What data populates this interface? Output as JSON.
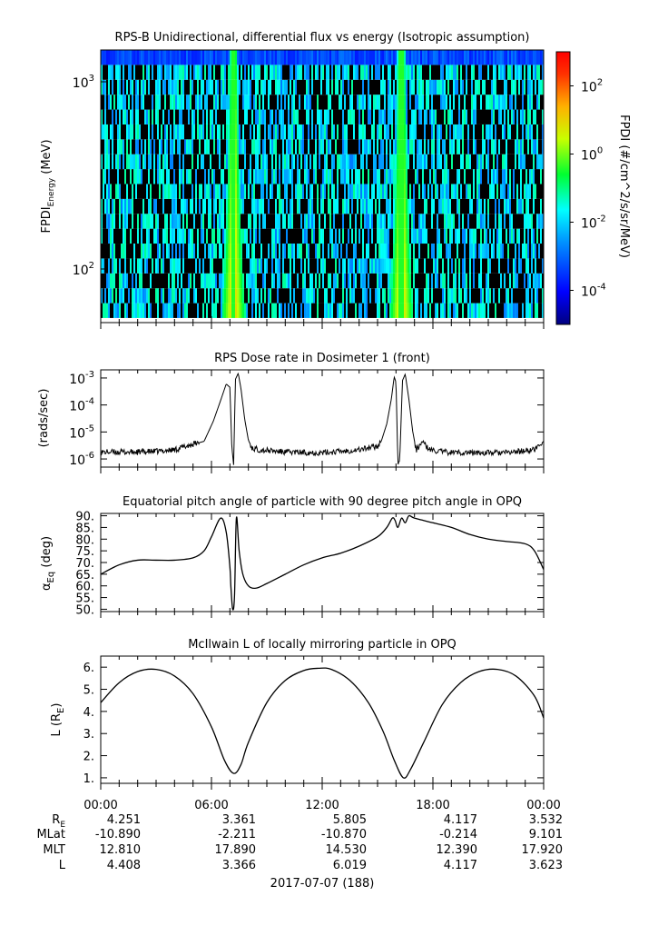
{
  "panels": {
    "spectrogram": {
      "title": "RPS-B  Unidirectional, differential flux vs energy (Isotropic assumption)",
      "ylabel_main": "FPDI",
      "ylabel_sub": "Energy",
      "ylabel_unit": " (MeV)",
      "ytick_labels": [
        {
          "base": "10",
          "exp": "3",
          "value": 1000
        },
        {
          "base": "10",
          "exp": "2",
          "value": 100
        }
      ],
      "colorbar_label": "FPDI (#/cm^2/s/sr/MeV)",
      "colorbar_tick_labels": [
        {
          "base": "10",
          "exp": "2",
          "value": 100
        },
        {
          "base": "10",
          "exp": "0",
          "value": 1
        },
        {
          "base": "10",
          "exp": "-2",
          "value": 0.01
        },
        {
          "base": "10",
          "exp": "-4",
          "value": 0.0001
        }
      ]
    },
    "dose": {
      "title": "RPS  Dose rate in Dosimeter 1 (front)",
      "ylabel": "(rads/sec)",
      "ytick_labels": [
        {
          "base": "10",
          "exp": "-3",
          "value": 0.001
        },
        {
          "base": "10",
          "exp": "-4",
          "value": 0.0001
        },
        {
          "base": "10",
          "exp": "-5",
          "value": 1e-05
        },
        {
          "base": "10",
          "exp": "-6",
          "value": 1e-06
        }
      ]
    },
    "pitch": {
      "title": "Equatorial pitch angle of particle with 90 degree pitch angle in OPQ",
      "ylabel_main": "α",
      "ylabel_sub": "Eq",
      "ylabel_unit": " (deg)",
      "ytick_labels": [
        "90.",
        "85.",
        "80.",
        "75.",
        "70.",
        "65.",
        "60.",
        "55.",
        "50."
      ]
    },
    "lshell": {
      "title": "McIlwain L of locally mirroring particle in OPQ",
      "ylabel_main": "L (R",
      "ylabel_sub": "E",
      "ylabel_end": ")",
      "ytick_labels": [
        "6.",
        "5.",
        "4.",
        "3.",
        "2.",
        "1."
      ]
    }
  },
  "ephemeris": {
    "time_labels": [
      "00:00",
      "06:00",
      "12:00",
      "18:00",
      "00:00"
    ],
    "row_labels": [
      {
        "main": "R",
        "sub": "E"
      },
      {
        "main": "MLat",
        "sub": ""
      },
      {
        "main": "MLT",
        "sub": ""
      },
      {
        "main": "L",
        "sub": ""
      }
    ],
    "rows": [
      [
        "4.251",
        "3.361",
        "5.805",
        "4.117",
        "3.532"
      ],
      [
        "-10.890",
        "-2.211",
        "-10.870",
        "-0.214",
        "9.101"
      ],
      [
        "12.810",
        "17.890",
        "14.530",
        "12.390",
        "17.920"
      ],
      [
        "4.408",
        "3.366",
        "6.019",
        "4.117",
        "3.623"
      ]
    ],
    "date_label": "2017-07-07 (188)"
  },
  "chart_data": [
    {
      "type": "heatmap",
      "title": "RPS-B  Unidirectional, differential flux vs energy (Isotropic assumption)",
      "xlabel": "",
      "ylabel": "FPDI Energy (MeV)",
      "x_units": "hours UT",
      "xlim": [
        0,
        24
      ],
      "ylim": [
        55,
        1300
      ],
      "yscale": "log",
      "colorbar": {
        "label": "FPDI (#/cm^2/s/sr/MeV)",
        "scale": "log",
        "range": [
          1e-05,
          1000
        ]
      },
      "features": [
        {
          "description": "high flux radiation-belt band",
          "center_hour": 7.2,
          "peak_flux": 10
        },
        {
          "description": "high flux radiation-belt band",
          "center_hour": 16.3,
          "peak_flux": 10
        }
      ],
      "background_flux_range": [
        0.0001,
        0.01
      ]
    },
    {
      "type": "line",
      "title": "RPS  Dose rate in Dosimeter 1 (front)",
      "ylabel": "(rads/sec)",
      "yscale": "log",
      "ylim": [
        5e-07,
        0.002
      ],
      "xlim": [
        0,
        24
      ],
      "series": [
        {
          "x": [
            0,
            1,
            2,
            3,
            4,
            5,
            5.6,
            6.1,
            6.5,
            6.8,
            7.0,
            7.1,
            7.2,
            7.3,
            7.45,
            7.6,
            7.8,
            8.0,
            8.2,
            8.6,
            9.2,
            10,
            12,
            14,
            15.0,
            15.2,
            15.5,
            15.75,
            15.9,
            16.0,
            16.1,
            16.2,
            16.35,
            16.5,
            16.7,
            16.9,
            17.1,
            17.4,
            17.8,
            18.6,
            20,
            22,
            23.5,
            24
          ],
          "y": [
            1.8e-06,
            1.8e-06,
            1.8e-06,
            1.9e-06,
            2.2e-06,
            3.5e-06,
            4.5e-06,
            2.5e-05,
            0.00015,
            0.0006,
            0.00045,
            3e-06,
            6e-07,
            0.0009,
            0.0015,
            0.0004,
            3e-05,
            5e-06,
            2.5e-06,
            2.2e-06,
            2e-06,
            1.8e-06,
            1.7e-06,
            2.2e-06,
            3e-06,
            4.5e-06,
            2e-05,
            0.00017,
            0.0011,
            0.0007,
            8e-07,
            8e-07,
            0.0008,
            0.0014,
            0.00016,
            1.1e-05,
            2e-06,
            4.5e-06,
            2.2e-06,
            1.8e-06,
            1.7e-06,
            1.7e-06,
            2.2e-06,
            4.5e-06
          ]
        }
      ]
    },
    {
      "type": "line",
      "title": "Equatorial pitch angle of particle with 90 degree pitch angle in OPQ",
      "ylabel": "α Eq (deg)",
      "ylim": [
        49,
        91
      ],
      "xlim": [
        0,
        24
      ],
      "series": [
        {
          "x": [
            0,
            1,
            2,
            3,
            4,
            5,
            5.6,
            6.0,
            6.5,
            6.8,
            7.0,
            7.05,
            7.15,
            7.25,
            7.35,
            7.5,
            7.7,
            8.0,
            8.4,
            9.0,
            10,
            11,
            12,
            13,
            14,
            15.0,
            15.5,
            15.8,
            15.95,
            16.1,
            16.3,
            16.5,
            16.7,
            17,
            18,
            19,
            20,
            21,
            22,
            23,
            23.5,
            24
          ],
          "y": [
            65,
            69,
            71,
            71,
            71,
            72,
            75,
            81,
            89,
            83,
            68,
            60,
            50,
            56,
            89,
            75,
            65,
            60,
            59,
            61,
            65,
            69,
            72,
            74,
            77,
            81,
            85,
            89,
            88,
            85,
            89,
            87,
            90,
            89,
            87,
            85,
            82,
            80,
            79,
            78,
            75,
            67
          ]
        }
      ]
    },
    {
      "type": "line",
      "title": "McIlwain L of locally mirroring particle in OPQ",
      "ylabel": "L (RE)",
      "ylim": [
        0.75,
        6.5
      ],
      "xlim": [
        0,
        24
      ],
      "series": [
        {
          "x": [
            0,
            1,
            2,
            3,
            4,
            5,
            6,
            6.7,
            7.2,
            7.6,
            8,
            9,
            10,
            11,
            11.8,
            12.5,
            13.5,
            14.5,
            15.3,
            15.9,
            16.4,
            16.8,
            17.5,
            18.5,
            19.5,
            20.5,
            21.5,
            22.5,
            23.5,
            24
          ],
          "y": [
            4.4,
            5.3,
            5.8,
            5.9,
            5.6,
            4.8,
            3.3,
            1.8,
            1.2,
            1.6,
            2.6,
            4.4,
            5.4,
            5.85,
            5.95,
            5.9,
            5.4,
            4.4,
            3.1,
            1.8,
            1.0,
            1.4,
            2.6,
            4.3,
            5.3,
            5.8,
            5.9,
            5.6,
            4.7,
            3.7
          ]
        }
      ]
    }
  ]
}
